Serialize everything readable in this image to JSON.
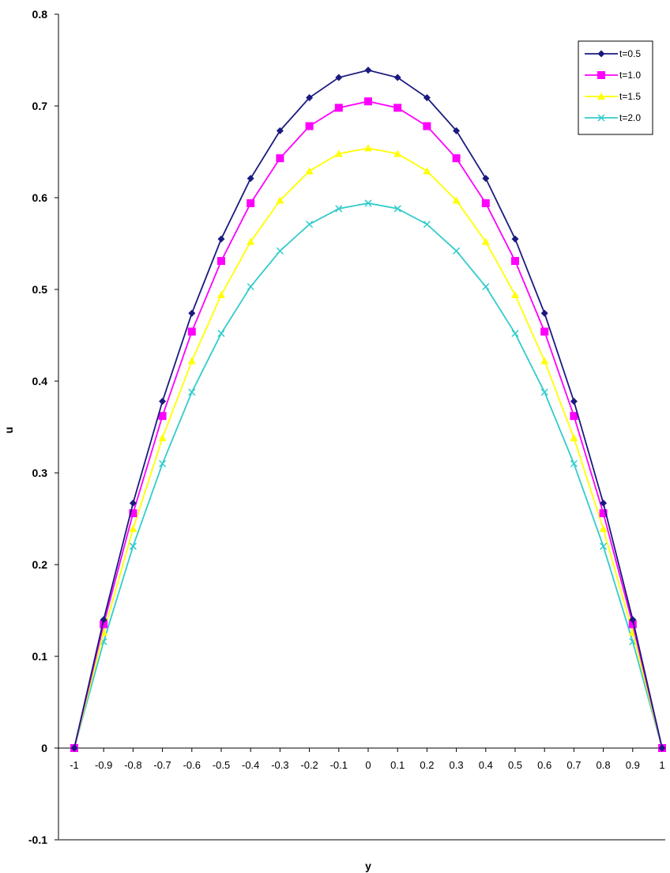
{
  "chart_data": {
    "type": "line",
    "xlabel": "y",
    "ylabel": "u",
    "xlim": [
      -1,
      1
    ],
    "ylim": [
      -0.1,
      0.8
    ],
    "x_ticks": [
      -1,
      -0.9,
      -0.8,
      -0.7,
      -0.6,
      -0.5,
      -0.4,
      -0.3,
      -0.2,
      -0.1,
      0,
      0.1,
      0.2,
      0.3,
      0.4,
      0.5,
      0.6,
      0.7,
      0.8,
      0.9,
      1
    ],
    "y_ticks": [
      -0.1,
      0,
      0.1,
      0.2,
      0.3,
      0.4,
      0.5,
      0.6,
      0.7,
      0.8
    ],
    "grid": false,
    "legend_position": "top-right",
    "x": [
      -1,
      -0.9,
      -0.8,
      -0.7,
      -0.6,
      -0.5,
      -0.4,
      -0.3,
      -0.2,
      -0.1,
      0,
      0.1,
      0.2,
      0.3,
      0.4,
      0.5,
      0.6,
      0.7,
      0.8,
      0.9,
      1
    ],
    "series": [
      {
        "name": "t=0.5",
        "color": "#1a1a80",
        "marker": "diamond",
        "values": [
          0,
          0.14,
          0.267,
          0.378,
          0.474,
          0.555,
          0.621,
          0.673,
          0.709,
          0.731,
          0.739,
          0.731,
          0.709,
          0.673,
          0.621,
          0.555,
          0.474,
          0.378,
          0.267,
          0.14,
          0
        ]
      },
      {
        "name": "t=1.0",
        "color": "#ff00ff",
        "marker": "square",
        "values": [
          0,
          0.135,
          0.256,
          0.362,
          0.454,
          0.531,
          0.594,
          0.643,
          0.678,
          0.698,
          0.705,
          0.698,
          0.678,
          0.643,
          0.594,
          0.531,
          0.454,
          0.362,
          0.256,
          0.135,
          0
        ]
      },
      {
        "name": "t=1.5",
        "color": "#ffff00",
        "marker": "triangle",
        "values": [
          0,
          0.126,
          0.239,
          0.338,
          0.422,
          0.494,
          0.552,
          0.597,
          0.629,
          0.648,
          0.654,
          0.648,
          0.629,
          0.597,
          0.552,
          0.494,
          0.422,
          0.338,
          0.239,
          0.126,
          0
        ]
      },
      {
        "name": "t=2.0",
        "color": "#33cccc",
        "marker": "x",
        "values": [
          0,
          0.116,
          0.22,
          0.31,
          0.388,
          0.452,
          0.503,
          0.542,
          0.571,
          0.588,
          0.594,
          0.588,
          0.571,
          0.542,
          0.503,
          0.452,
          0.388,
          0.31,
          0.22,
          0.116,
          0
        ]
      }
    ]
  }
}
